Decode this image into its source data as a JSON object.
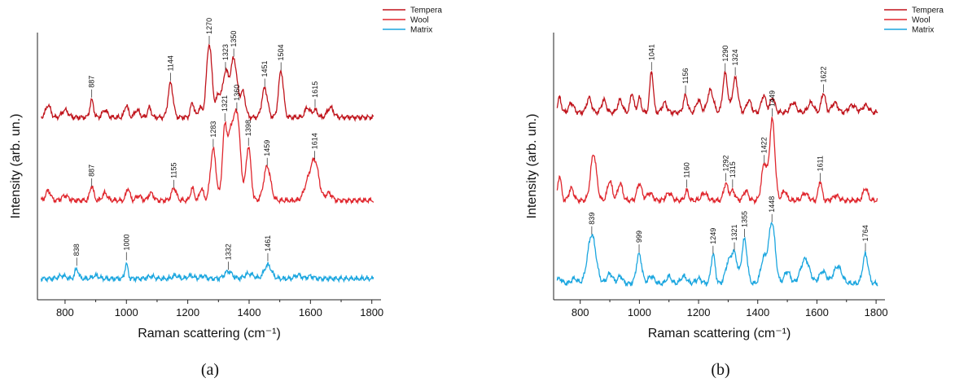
{
  "colors": {
    "tempera": "#c0141c",
    "wool": "#e0262d",
    "matrix": "#1ba6df"
  },
  "chart_data": [
    {
      "type": "line",
      "panel_label": "(a)",
      "xlabel": "Raman scattering (cm⁻¹)",
      "ylabel": "Intensity (arb. un.)",
      "xlim": [
        710,
        1830
      ],
      "xticks": [
        800,
        1000,
        1200,
        1400,
        1600,
        1800
      ],
      "y_ticks_labeled": false,
      "grid": false,
      "legend": {
        "position": "top-right",
        "entries": [
          "Tempera",
          "Wool",
          "Matrix"
        ]
      },
      "series": [
        {
          "name": "Tempera",
          "color_key": "tempera",
          "baseline": 0.72,
          "peaks": [
            [
              745,
              0.05,
              8
            ],
            [
              800,
              0.03,
              10
            ],
            [
              887,
              0.07,
              6
            ],
            [
              930,
              0.03,
              8
            ],
            [
              1000,
              0.05,
              6
            ],
            [
              1035,
              0.03,
              8
            ],
            [
              1075,
              0.04,
              6
            ],
            [
              1144,
              0.14,
              8
            ],
            [
              1215,
              0.06,
              6
            ],
            [
              1240,
              0.04,
              6
            ],
            [
              1270,
              0.3,
              9
            ],
            [
              1300,
              0.09,
              8
            ],
            [
              1323,
              0.18,
              9
            ],
            [
              1350,
              0.24,
              11
            ],
            [
              1380,
              0.1,
              8
            ],
            [
              1451,
              0.12,
              9
            ],
            [
              1504,
              0.19,
              8
            ],
            [
              1590,
              0.04,
              8
            ],
            [
              1615,
              0.03,
              8
            ],
            [
              1665,
              0.04,
              10
            ]
          ],
          "labels": [
            {
              "text": "887",
              "x": 887
            },
            {
              "text": "1144",
              "x": 1144
            },
            {
              "text": "1270",
              "x": 1270
            },
            {
              "text": "1323",
              "x": 1323
            },
            {
              "text": "1350",
              "x": 1350
            },
            {
              "text": "1451",
              "x": 1451
            },
            {
              "text": "1504",
              "x": 1504
            },
            {
              "text": "1615",
              "x": 1615
            }
          ]
        },
        {
          "name": "Wool",
          "color_key": "wool",
          "baseline": 0.38,
          "peaks": [
            [
              745,
              0.04,
              8
            ],
            [
              800,
              0.02,
              10
            ],
            [
              887,
              0.06,
              6
            ],
            [
              930,
              0.03,
              8
            ],
            [
              1005,
              0.05,
              6
            ],
            [
              1040,
              0.02,
              8
            ],
            [
              1080,
              0.03,
              8
            ],
            [
              1155,
              0.05,
              8
            ],
            [
              1215,
              0.05,
              6
            ],
            [
              1245,
              0.05,
              6
            ],
            [
              1283,
              0.21,
              9
            ],
            [
              1321,
              0.3,
              8
            ],
            [
              1340,
              0.22,
              8
            ],
            [
              1360,
              0.36,
              11
            ],
            [
              1398,
              0.22,
              8
            ],
            [
              1459,
              0.14,
              11
            ],
            [
              1590,
              0.06,
              12
            ],
            [
              1614,
              0.16,
              13
            ],
            [
              1660,
              0.03,
              10
            ]
          ],
          "labels": [
            {
              "text": "887",
              "x": 887
            },
            {
              "text": "1155",
              "x": 1155
            },
            {
              "text": "1283",
              "x": 1283
            },
            {
              "text": "1321",
              "x": 1321
            },
            {
              "text": "1360",
              "x": 1360
            },
            {
              "text": "1398",
              "x": 1398
            },
            {
              "text": "1459",
              "x": 1459
            },
            {
              "text": "1614",
              "x": 1614
            }
          ]
        },
        {
          "name": "Matrix",
          "color_key": "matrix",
          "baseline": 0.06,
          "peaks": [
            [
              790,
              0.012,
              12
            ],
            [
              838,
              0.04,
              6
            ],
            [
              900,
              0.012,
              10
            ],
            [
              1000,
              0.06,
              5
            ],
            [
              1080,
              0.01,
              10
            ],
            [
              1160,
              0.012,
              10
            ],
            [
              1210,
              0.012,
              10
            ],
            [
              1250,
              0.012,
              8
            ],
            [
              1332,
              0.03,
              12
            ],
            [
              1400,
              0.02,
              14
            ],
            [
              1461,
              0.055,
              12
            ],
            [
              1560,
              0.015,
              10
            ],
            [
              1600,
              0.01,
              10
            ]
          ],
          "labels": [
            {
              "text": "838",
              "x": 838
            },
            {
              "text": "1000",
              "x": 1000
            },
            {
              "text": "1332",
              "x": 1332
            },
            {
              "text": "1461",
              "x": 1461
            }
          ]
        }
      ]
    },
    {
      "type": "line",
      "panel_label": "(b)",
      "xlabel": "Raman scattering (cm⁻¹)",
      "ylabel": "Intensity (arb. un.)",
      "xlim": [
        710,
        1830
      ],
      "xticks": [
        800,
        1000,
        1200,
        1400,
        1600,
        1800
      ],
      "y_ticks_labeled": false,
      "grid": false,
      "legend": {
        "position": "top-right",
        "entries": [
          "Tempera",
          "Wool",
          "Matrix"
        ]
      },
      "series": [
        {
          "name": "Tempera",
          "color_key": "tempera",
          "baseline": 0.74,
          "peaks": [
            [
              730,
              0.06,
              6
            ],
            [
              770,
              0.04,
              8
            ],
            [
              830,
              0.06,
              8
            ],
            [
              880,
              0.05,
              8
            ],
            [
              935,
              0.05,
              8
            ],
            [
              975,
              0.08,
              6
            ],
            [
              1000,
              0.06,
              6
            ],
            [
              1041,
              0.17,
              6
            ],
            [
              1085,
              0.04,
              8
            ],
            [
              1156,
              0.07,
              7
            ],
            [
              1200,
              0.05,
              8
            ],
            [
              1240,
              0.09,
              10
            ],
            [
              1290,
              0.16,
              8
            ],
            [
              1324,
              0.14,
              9
            ],
            [
              1370,
              0.05,
              8
            ],
            [
              1420,
              0.07,
              8
            ],
            [
              1450,
              0.06,
              8
            ],
            [
              1520,
              0.04,
              10
            ],
            [
              1580,
              0.04,
              10
            ],
            [
              1622,
              0.08,
              7
            ],
            [
              1660,
              0.04,
              10
            ],
            [
              1720,
              0.03,
              12
            ],
            [
              1765,
              0.03,
              10
            ]
          ],
          "labels": [
            {
              "text": "1041",
              "x": 1041
            },
            {
              "text": "1156",
              "x": 1156
            },
            {
              "text": "1290",
              "x": 1290
            },
            {
              "text": "1324",
              "x": 1324
            },
            {
              "text": "1622",
              "x": 1622
            }
          ]
        },
        {
          "name": "Wool",
          "color_key": "wool",
          "baseline": 0.38,
          "peaks": [
            [
              730,
              0.1,
              6
            ],
            [
              770,
              0.05,
              8
            ],
            [
              845,
              0.19,
              10
            ],
            [
              900,
              0.08,
              8
            ],
            [
              935,
              0.07,
              8
            ],
            [
              1000,
              0.07,
              8
            ],
            [
              1035,
              0.03,
              10
            ],
            [
              1100,
              0.03,
              10
            ],
            [
              1160,
              0.04,
              6
            ],
            [
              1220,
              0.03,
              10
            ],
            [
              1292,
              0.07,
              7
            ],
            [
              1315,
              0.04,
              8
            ],
            [
              1360,
              0.04,
              8
            ],
            [
              1422,
              0.15,
              9
            ],
            [
              1449,
              0.33,
              9
            ],
            [
              1490,
              0.04,
              8
            ],
            [
              1560,
              0.03,
              10
            ],
            [
              1611,
              0.08,
              6
            ],
            [
              1665,
              0.02,
              10
            ],
            [
              1764,
              0.05,
              8
            ]
          ],
          "labels": [
            {
              "text": "1160",
              "x": 1160
            },
            {
              "text": "1292",
              "x": 1292
            },
            {
              "text": "1315",
              "x": 1315
            },
            {
              "text": "1422",
              "x": 1422
            },
            {
              "text": "1449",
              "x": 1449
            },
            {
              "text": "1611",
              "x": 1611
            }
          ]
        },
        {
          "name": "Matrix",
          "color_key": "matrix",
          "baseline": 0.04,
          "peaks": [
            [
              730,
              0.02,
              8
            ],
            [
              780,
              0.02,
              10
            ],
            [
              839,
              0.2,
              14
            ],
            [
              900,
              0.04,
              10
            ],
            [
              935,
              0.03,
              8
            ],
            [
              999,
              0.12,
              9
            ],
            [
              1040,
              0.03,
              10
            ],
            [
              1100,
              0.03,
              8
            ],
            [
              1150,
              0.03,
              10
            ],
            [
              1200,
              0.02,
              10
            ],
            [
              1249,
              0.12,
              7
            ],
            [
              1300,
              0.08,
              10
            ],
            [
              1321,
              0.12,
              10
            ],
            [
              1355,
              0.18,
              9
            ],
            [
              1420,
              0.1,
              10
            ],
            [
              1448,
              0.25,
              11
            ],
            [
              1500,
              0.05,
              10
            ],
            [
              1560,
              0.1,
              15
            ],
            [
              1620,
              0.05,
              12
            ],
            [
              1670,
              0.07,
              14
            ],
            [
              1764,
              0.12,
              9
            ]
          ],
          "labels": [
            {
              "text": "839",
              "x": 839
            },
            {
              "text": "999",
              "x": 999
            },
            {
              "text": "1249",
              "x": 1249
            },
            {
              "text": "1321",
              "x": 1321
            },
            {
              "text": "1355",
              "x": 1355
            },
            {
              "text": "1448",
              "x": 1448
            },
            {
              "text": "1764",
              "x": 1764
            }
          ]
        }
      ]
    }
  ]
}
